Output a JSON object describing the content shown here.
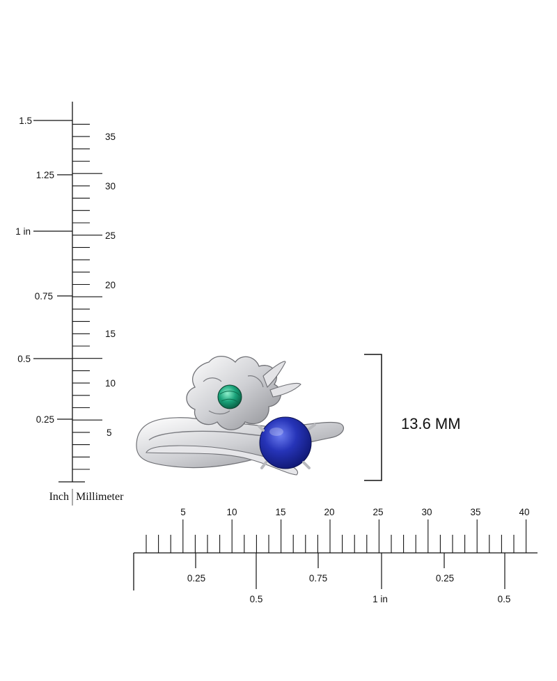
{
  "vertical_ruler": {
    "inch_labels": [
      "1.5",
      "1.25",
      "1 in",
      "0.75",
      "0.5",
      "0.25"
    ],
    "mm_labels": [
      "35",
      "30",
      "25",
      "20",
      "15",
      "10",
      "5"
    ],
    "unit_inch": "Inch",
    "unit_mm": "Millimeter"
  },
  "horizontal_ruler": {
    "mm_labels": [
      "5",
      "10",
      "15",
      "20",
      "25",
      "30",
      "35",
      "40"
    ],
    "inch_labels": [
      "0.25",
      "0.5",
      "0.75",
      "1 in",
      "0.25",
      "0.5"
    ]
  },
  "dimension": {
    "label": "13.6 MM"
  },
  "product": {
    "metal_color": "#d9d9dc",
    "stone_small_color": "#1aa37a",
    "stone_large_color": "#2634b8"
  }
}
